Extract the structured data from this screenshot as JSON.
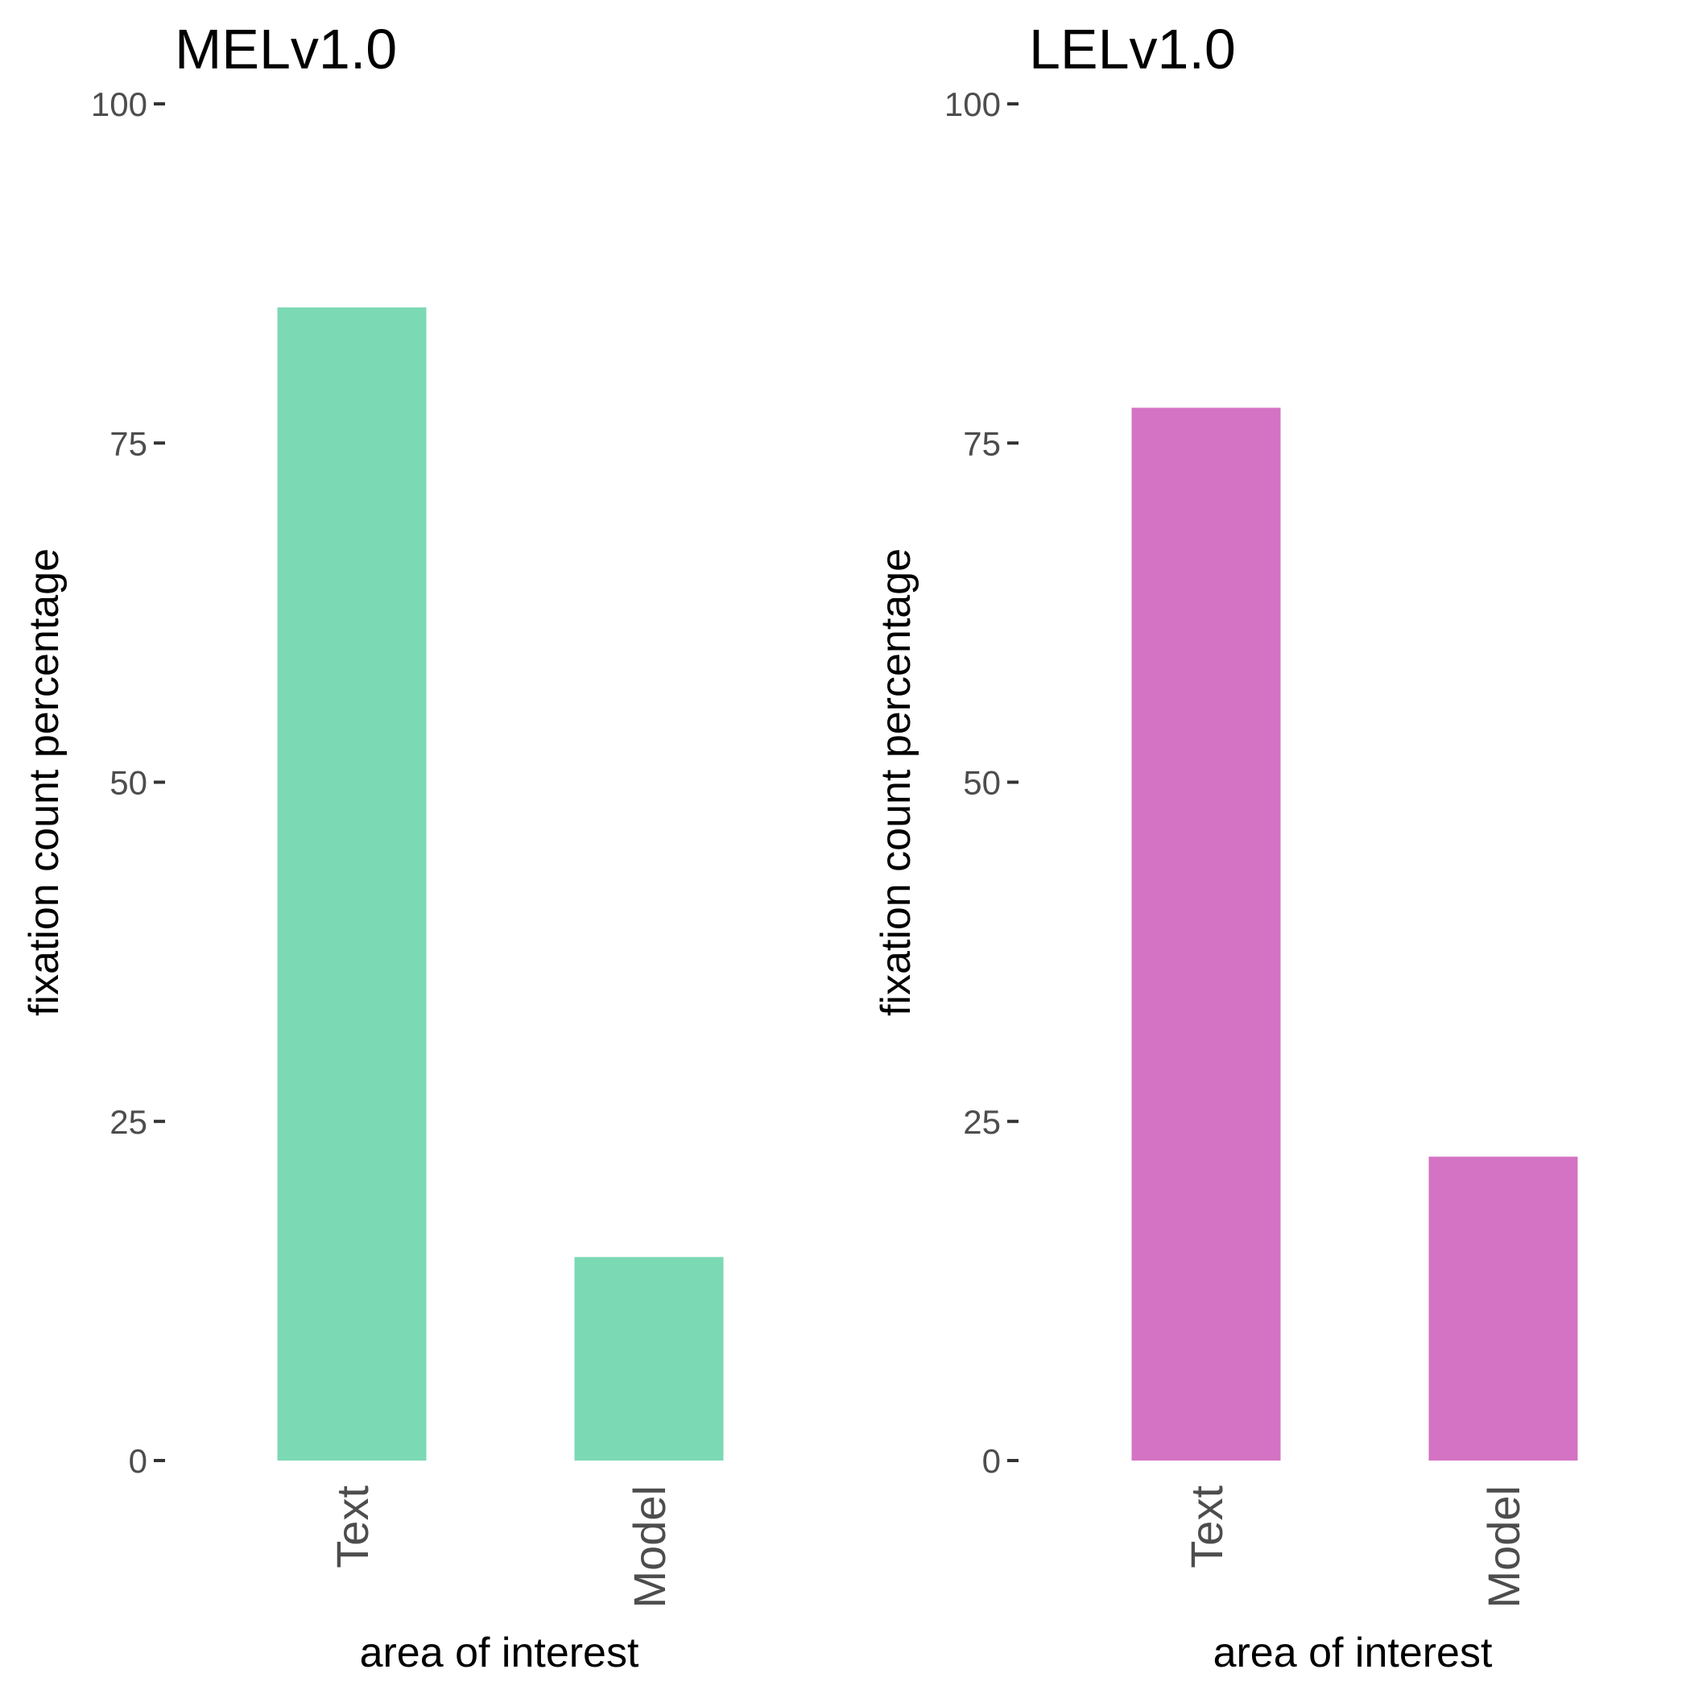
{
  "chart_data": [
    {
      "type": "bar",
      "title": "MELv1.0",
      "xlabel": "area of interest",
      "ylabel": "fixation count percentage",
      "categories": [
        "Text",
        "Model"
      ],
      "values": [
        85,
        15
      ],
      "ylim": [
        0,
        100
      ],
      "yticks": [
        0,
        25,
        50,
        75,
        100
      ],
      "grid": false,
      "color": "#7BD9B3"
    },
    {
      "type": "bar",
      "title": "LELv1.0",
      "xlabel": "area of interest",
      "ylabel": "fixation count percentage",
      "categories": [
        "Text",
        "Model"
      ],
      "values": [
        77.6,
        22.4
      ],
      "ylim": [
        0,
        100
      ],
      "yticks": [
        0,
        25,
        50,
        75,
        100
      ],
      "grid": false,
      "color": "#D472C3"
    }
  ]
}
